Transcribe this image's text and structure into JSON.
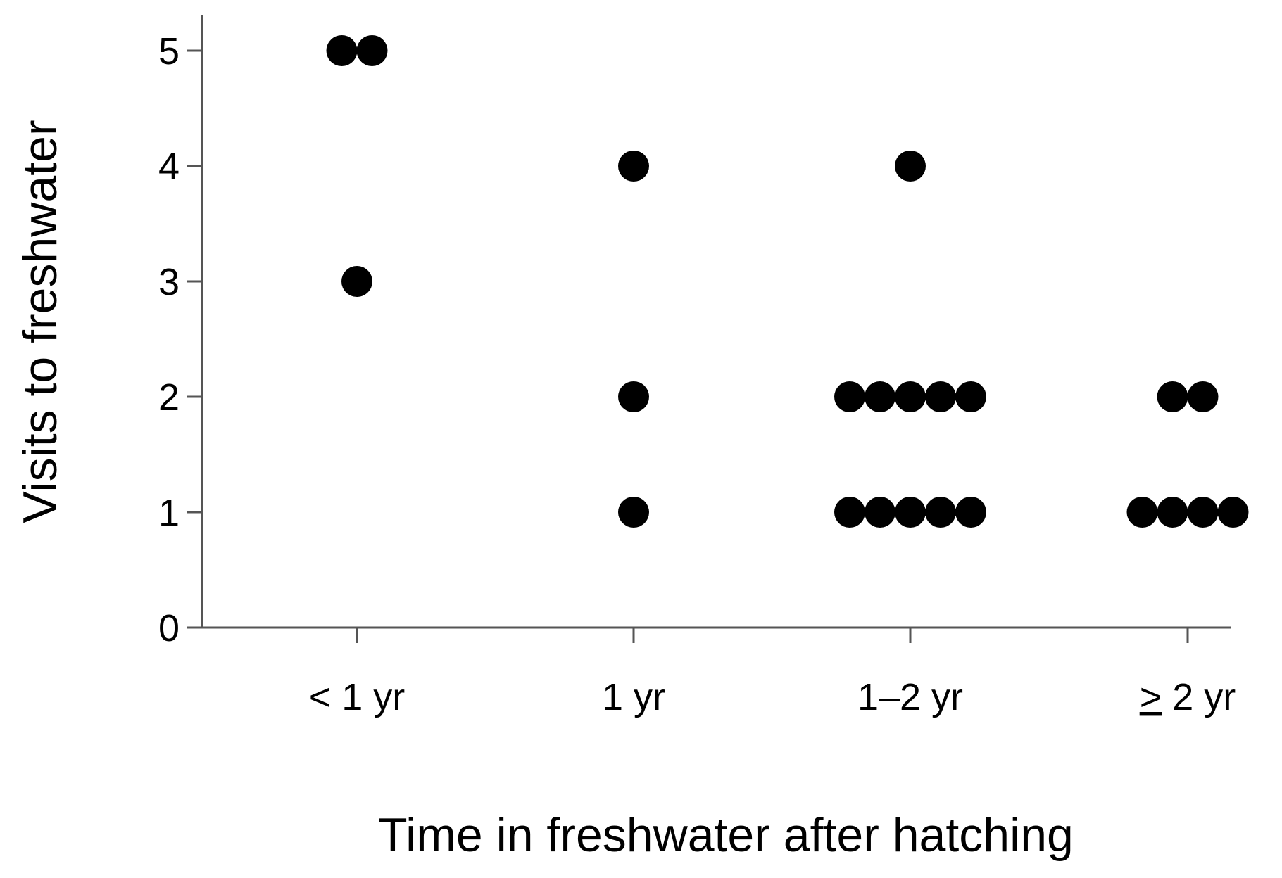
{
  "chart_data": {
    "type": "scatter",
    "xlabel": "Time in freshwater after hatching",
    "ylabel": "Visits to freshwater",
    "categories": [
      "< 1 yr",
      "1 yr",
      "1–2 yr",
      "≥ 2 yr"
    ],
    "category_display": [
      {
        "text": "< 1 yr"
      },
      {
        "text": "1 yr"
      },
      {
        "text": "1–2 yr"
      },
      {
        "prefix": ">",
        "text": " 2 yr",
        "prefix_underline": true
      }
    ],
    "yticks": [
      "0",
      "1",
      "2",
      "3",
      "4",
      "5"
    ],
    "ylim": [
      0,
      5.3
    ],
    "points": [
      {
        "category": "< 1 yr",
        "y": 5,
        "count": 2
      },
      {
        "category": "< 1 yr",
        "y": 3,
        "count": 1
      },
      {
        "category": "1 yr",
        "y": 4,
        "count": 1
      },
      {
        "category": "1 yr",
        "y": 2,
        "count": 1
      },
      {
        "category": "1 yr",
        "y": 1,
        "count": 1
      },
      {
        "category": "1–2 yr",
        "y": 4,
        "count": 1
      },
      {
        "category": "1–2 yr",
        "y": 2,
        "count": 5
      },
      {
        "category": "1–2 yr",
        "y": 1,
        "count": 5
      },
      {
        "category": "≥ 2 yr",
        "y": 2,
        "count": 2
      },
      {
        "category": "≥ 2 yr",
        "y": 1,
        "count": 4
      }
    ],
    "grid": false,
    "marker_color": "#000000",
    "axis_color": "#555555"
  }
}
